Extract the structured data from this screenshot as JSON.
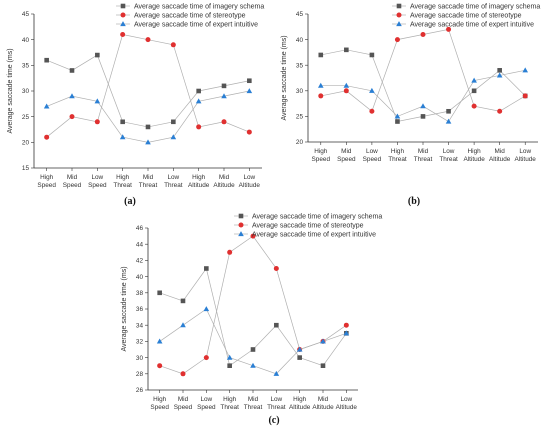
{
  "colors": {
    "imagery_schema": "#555555",
    "stereotype": "#e03030",
    "expert_intuitive": "#2a7fd4"
  },
  "chart_data": [
    {
      "type": "line",
      "panel_label": "(a)",
      "ylabel": "Average saccade time  (ms)",
      "ylim": [
        15,
        45
      ],
      "yticks": [
        15,
        20,
        25,
        30,
        35,
        40,
        45
      ],
      "categories": [
        [
          "High",
          "Speed"
        ],
        [
          "Mid",
          "Speed"
        ],
        [
          "Low",
          "Speed"
        ],
        [
          "High",
          "Threat"
        ],
        [
          "Mid",
          "Threat"
        ],
        [
          "Low",
          "Threat"
        ],
        [
          "High",
          "Altitude"
        ],
        [
          "Mid",
          "Altitude"
        ],
        [
          "Low",
          "Altitude"
        ]
      ],
      "legend_position": "top-right",
      "series": [
        {
          "name": "Average saccade time of imagery schema",
          "marker": "square",
          "values": [
            36,
            34,
            37,
            24,
            23,
            24,
            30,
            31,
            32
          ]
        },
        {
          "name": "Average saccade time of stereotype",
          "marker": "circle",
          "values": [
            21,
            25,
            24,
            41,
            40,
            39,
            23,
            24,
            22
          ]
        },
        {
          "name": "Average saccade time of expert intuitive",
          "marker": "triangle",
          "values": [
            27,
            29,
            28,
            21,
            20,
            21,
            28,
            29,
            30
          ]
        }
      ]
    },
    {
      "type": "line",
      "panel_label": "(b)",
      "ylabel": "Average saccade time  (ms)",
      "ylim": [
        20,
        45
      ],
      "yticks": [
        20,
        25,
        30,
        35,
        40,
        45
      ],
      "categories": [
        [
          "High",
          "Speed"
        ],
        [
          "Mid",
          "Speed"
        ],
        [
          "Low",
          "Speed"
        ],
        [
          "High",
          "Threat"
        ],
        [
          "Mid",
          "Threat"
        ],
        [
          "Low",
          "Threat"
        ],
        [
          "High",
          "Altitude"
        ],
        [
          "Mid",
          "Altitude"
        ],
        [
          "Low",
          "Altitude"
        ]
      ],
      "legend_position": "top-right",
      "series": [
        {
          "name": "Average saccade time of imagery schema",
          "marker": "square",
          "values": [
            37,
            38,
            37,
            24,
            25,
            26,
            30,
            34,
            29
          ]
        },
        {
          "name": "Average saccade time of stereotype",
          "marker": "circle",
          "values": [
            29,
            30,
            26,
            40,
            41,
            42,
            27,
            26,
            29
          ]
        },
        {
          "name": "Average saccade time of expert intuitive",
          "marker": "triangle",
          "values": [
            31,
            31,
            30,
            25,
            27,
            24,
            32,
            33,
            34
          ]
        }
      ]
    },
    {
      "type": "line",
      "panel_label": "(c)",
      "ylabel": "Average saccade time  (ms)",
      "ylim": [
        26,
        46
      ],
      "yticks": [
        26,
        28,
        30,
        32,
        34,
        36,
        38,
        40,
        42,
        44,
        46
      ],
      "categories": [
        [
          "High",
          "Speed"
        ],
        [
          "Mid",
          "Speed"
        ],
        [
          "Low",
          "Speed"
        ],
        [
          "High",
          "Threat"
        ],
        [
          "Mid",
          "Threat"
        ],
        [
          "Low",
          "Threat"
        ],
        [
          "High",
          "Altitude"
        ],
        [
          "Mid",
          "Altitude"
        ],
        [
          "Low",
          "Altitude"
        ]
      ],
      "legend_position": "top-right",
      "series": [
        {
          "name": "Average saccade time of imagery schema",
          "marker": "square",
          "values": [
            38,
            37,
            41,
            29,
            31,
            34,
            30,
            29,
            33
          ]
        },
        {
          "name": "Average saccade time of stereotype",
          "marker": "circle",
          "values": [
            29,
            28,
            30,
            43,
            45,
            41,
            31,
            32,
            34
          ]
        },
        {
          "name": "Average saccade time of expert intuitive",
          "marker": "triangle",
          "values": [
            32,
            34,
            36,
            30,
            29,
            28,
            31,
            32,
            33
          ]
        }
      ]
    }
  ]
}
